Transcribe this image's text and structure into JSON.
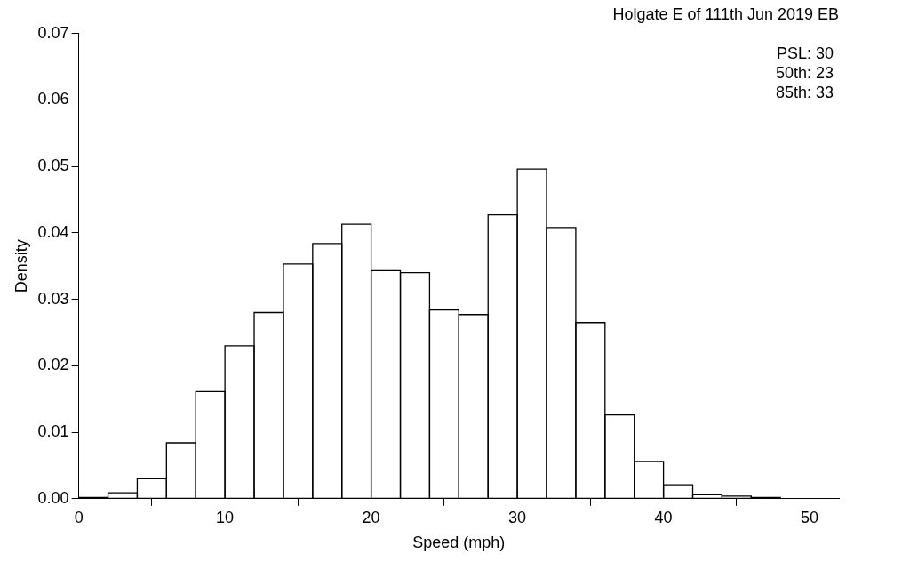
{
  "chart_data": {
    "type": "histogram",
    "title": "Holgate E of 111th Jun 2019 EB",
    "xlabel": "Speed (mph)",
    "ylabel": "Density",
    "bins": [
      0,
      2,
      4,
      6,
      8,
      10,
      12,
      14,
      16,
      18,
      20,
      22,
      24,
      26,
      28,
      30,
      32,
      34,
      36,
      38,
      40,
      42,
      44,
      46,
      48
    ],
    "values": [
      0.0002,
      0.0009,
      0.003,
      0.0084,
      0.0161,
      0.023,
      0.028,
      0.0353,
      0.0384,
      0.0413,
      0.0343,
      0.034,
      0.0284,
      0.0277,
      0.0427,
      0.0496,
      0.0408,
      0.0265,
      0.0126,
      0.0056,
      0.0021,
      0.0006,
      0.0004,
      0.0002
    ],
    "color": "#000000",
    "xlim": [
      0,
      52
    ],
    "xticks": [
      0,
      10,
      20,
      30,
      40,
      50
    ],
    "ylim": [
      0,
      0.07
    ],
    "yticks": [
      {
        "value": 0,
        "label": "0.00"
      },
      0.01,
      0.02,
      0.03,
      0.04,
      0.05,
      0.06,
      0.07
    ],
    "annotations": [
      "PSL: 30",
      "50th: 23",
      "85th: 33"
    ],
    "grid": false,
    "legend": false
  }
}
